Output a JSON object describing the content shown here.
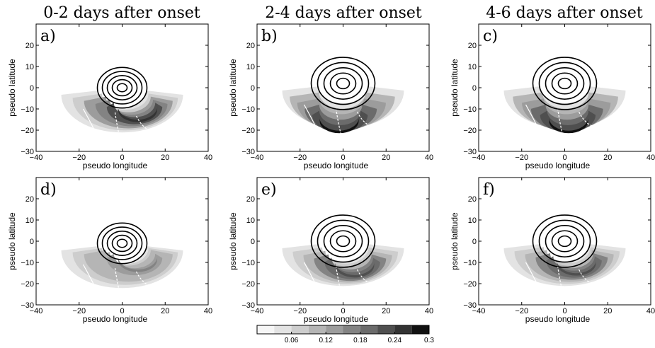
{
  "column_titles": [
    "0-2 days after onset",
    "2-4 days after onset",
    "4-6 days after onset"
  ],
  "chart_data": [
    {
      "type": "heatmap",
      "panel": "a)",
      "xlabel": "pseudo longitude",
      "ylabel": "pseudo latitude",
      "xlim": [
        -40,
        40
      ],
      "ylim": [
        -30,
        30
      ],
      "xticks": [
        -40,
        -20,
        0,
        20,
        40
      ],
      "yticks": [
        -30,
        -20,
        -10,
        0,
        10,
        20
      ],
      "shade_center": [
        8,
        -14
      ],
      "shade_peak": 0.24,
      "contour_center": [
        0,
        0
      ],
      "contour_levels": 5
    },
    {
      "type": "heatmap",
      "panel": "b)",
      "xlabel": "pseudo longitude",
      "ylabel": "pseudo latitude",
      "xlim": [
        -40,
        40
      ],
      "ylim": [
        -30,
        30
      ],
      "xticks": [
        -40,
        -20,
        0,
        20,
        40
      ],
      "yticks": [
        -30,
        -20,
        -10,
        0,
        10,
        20
      ],
      "shade_center": [
        -2,
        -20
      ],
      "shade_peak": 0.3,
      "contour_center": [
        0,
        2
      ],
      "contour_levels": 5
    },
    {
      "type": "heatmap",
      "panel": "c)",
      "xlabel": "pseudo longitude",
      "ylabel": "pseudo latitude",
      "xlim": [
        -40,
        40
      ],
      "ylim": [
        -30,
        30
      ],
      "xticks": [
        -40,
        -20,
        0,
        20,
        40
      ],
      "yticks": [
        -30,
        -20,
        -10,
        0,
        10,
        20
      ],
      "shade_center": [
        2,
        -20
      ],
      "shade_peak": 0.28,
      "contour_center": [
        0,
        2
      ],
      "contour_levels": 5
    },
    {
      "type": "heatmap",
      "panel": "d)",
      "xlabel": "pseudo longitude",
      "ylabel": "pseudo latitude",
      "xlim": [
        -40,
        40
      ],
      "ylim": [
        -30,
        30
      ],
      "xticks": [
        -40,
        -20,
        0,
        20,
        40
      ],
      "yticks": [
        -30,
        -20,
        -10,
        0,
        10,
        20
      ],
      "shade_center": [
        8,
        -12
      ],
      "shade_peak": 0.16,
      "contour_center": [
        0,
        -1
      ],
      "contour_levels": 5
    },
    {
      "type": "heatmap",
      "panel": "e)",
      "xlabel": "pseudo longitude",
      "ylabel": "pseudo latitude",
      "xlim": [
        -40,
        40
      ],
      "ylim": [
        -30,
        30
      ],
      "xticks": [
        -40,
        -20,
        0,
        20,
        40
      ],
      "yticks": [
        -30,
        -20,
        -10,
        0,
        10,
        20
      ],
      "shade_center": [
        6,
        -15
      ],
      "shade_peak": 0.2,
      "contour_center": [
        0,
        0
      ],
      "contour_levels": 5
    },
    {
      "type": "heatmap",
      "panel": "f)",
      "xlabel": "pseudo longitude",
      "ylabel": "pseudo latitude",
      "xlim": [
        -40,
        40
      ],
      "ylim": [
        -30,
        30
      ],
      "xticks": [
        -40,
        -20,
        0,
        20,
        40
      ],
      "yticks": [
        -30,
        -20,
        -10,
        0,
        10,
        20
      ],
      "shade_center": [
        6,
        -14
      ],
      "shade_peak": 0.2,
      "contour_center": [
        0,
        0
      ],
      "contour_levels": 5
    }
  ],
  "colorbar": {
    "range": [
      0,
      0.3
    ],
    "bins": 10,
    "ticks": [
      0.06,
      0.12,
      0.18,
      0.24,
      0.3
    ],
    "tick_labels": [
      "0.06",
      "0.12",
      "0.18",
      "0.24",
      "0.3"
    ]
  }
}
